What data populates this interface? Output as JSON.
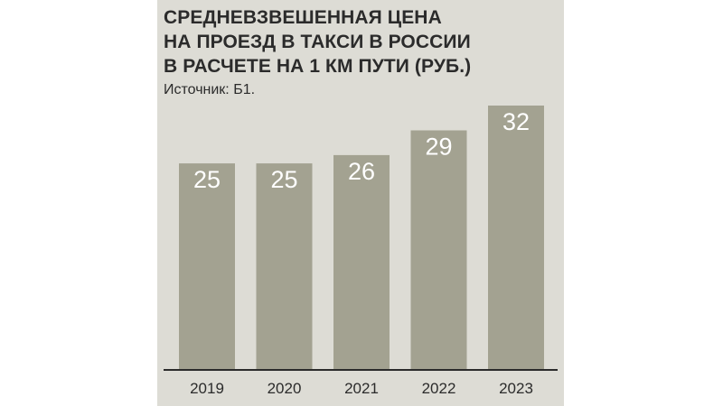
{
  "title_lines": [
    "СРЕДНЕВЗВЕШЕННАЯ ЦЕНА",
    "НА ПРОЕЗД В ТАКСИ В РОССИИ",
    "В РАСЧЕТЕ НА 1 КМ ПУТИ (РУБ.)"
  ],
  "source": "Источник: Б1.",
  "colors": {
    "background": "#dddcd5",
    "bar": "#a3a291",
    "bar_label": "#ffffff",
    "axis": "#2b2b2b",
    "text": "#2b2b2b"
  },
  "chart_data": {
    "type": "bar",
    "title": "СРЕДНЕВЗВЕШЕННАЯ ЦЕНА НА ПРОЕЗД В ТАКСИ В РОССИИ В РАСЧЕТЕ НА 1 КМ ПУТИ (РУБ.)",
    "categories": [
      "2019",
      "2020",
      "2021",
      "2022",
      "2023"
    ],
    "values": [
      25,
      25,
      26,
      29,
      32
    ],
    "value_labels": [
      "25",
      "25",
      "26",
      "29",
      "32"
    ],
    "xlabel": "",
    "ylabel": "",
    "ylim": [
      0,
      32
    ],
    "grid": false,
    "legend": "none"
  }
}
